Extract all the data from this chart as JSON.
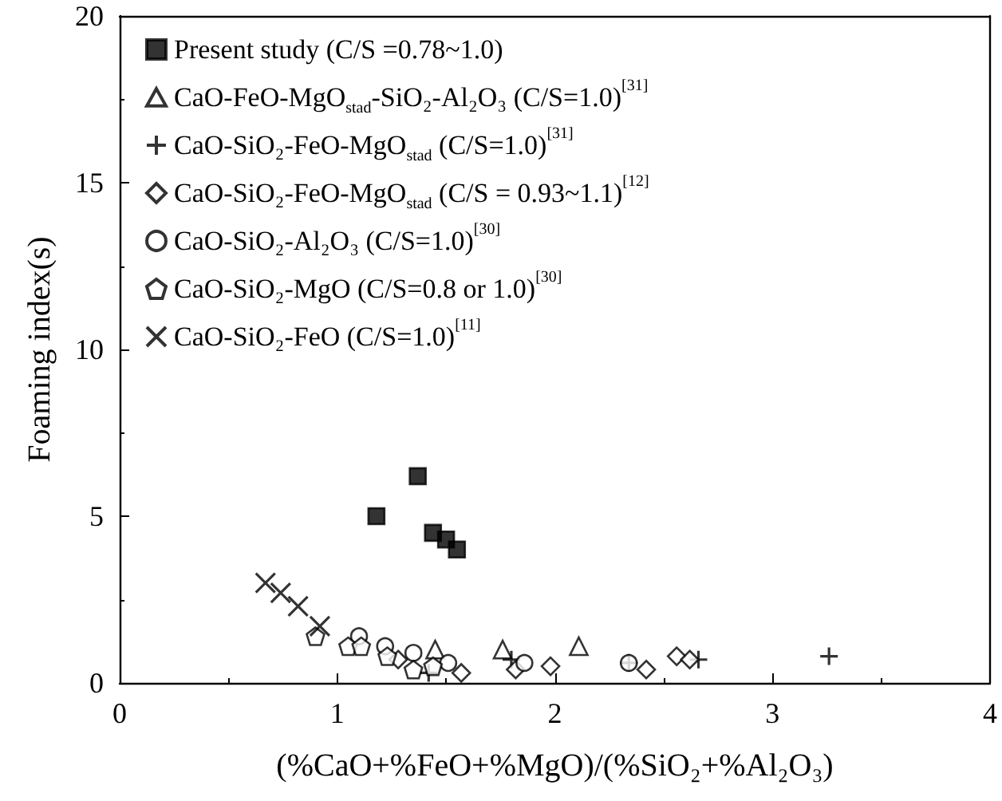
{
  "chart_data": {
    "type": "scatter",
    "xlabel": "(%CaO+%FeO+%MgO)/(%SiO₂+%Al₂O₃)",
    "ylabel": "Foaming index(s)",
    "xlim": [
      0,
      4
    ],
    "xticks": [
      0,
      1,
      2,
      3,
      4
    ],
    "ylim": [
      0,
      20
    ],
    "yticks": [
      0,
      5,
      10,
      15,
      20
    ],
    "grid": false,
    "legend": "top left",
    "series": [
      {
        "name": "Present study (C/S =0.78~1.0)",
        "color": "#000000",
        "marker": "square",
        "x": [
          1.18,
          1.37,
          1.44,
          1.5,
          1.55
        ],
        "values": [
          5.0,
          6.2,
          4.5,
          4.3,
          4.0
        ]
      },
      {
        "name": "CaO-FeO-MgO$_{stad}$-SiO₂-Al₂O₃ (C/S=1.0)$^{[31]}$",
        "color": "#000000",
        "marker": "triangle",
        "x": [
          1.45,
          1.76,
          2.11
        ],
        "values": [
          1.0,
          1.0,
          1.1
        ]
      },
      {
        "name": "CaO-SiO₂-FeO-MgO$_{stad}$ (C/S=1.0)$^{[31]}$",
        "color": "#000000",
        "marker": "plus",
        "x": [
          1.42,
          1.8,
          2.34,
          2.66,
          3.26
        ],
        "values": [
          0.3,
          0.7,
          0.6,
          0.7,
          0.8
        ]
      },
      {
        "name": "CaO-SiO₂-FeO-MgO$_{stad}$ (C/S = 0.93~1.1)$^{[12]}$",
        "color": "#000000",
        "marker": "diamond",
        "x": [
          1.28,
          1.57,
          1.82,
          1.98,
          2.42,
          2.56,
          2.62
        ],
        "values": [
          0.7,
          0.3,
          0.4,
          0.5,
          0.4,
          0.8,
          0.7
        ]
      },
      {
        "name": "CaO-SiO₂-Al₂O₃ (C/S=1.0)$^{[30]}$",
        "color": "#000000",
        "marker": "circle",
        "x": [
          1.1,
          1.22,
          1.35,
          1.51,
          1.86,
          2.34
        ],
        "values": [
          1.4,
          1.1,
          0.9,
          0.6,
          0.6,
          0.6
        ]
      },
      {
        "name": "CaO-SiO₂-MgO (C/S=0.8 or 1.0)$^{[30]}$",
        "color": "#000000",
        "x": [
          0.9,
          1.05,
          1.11,
          1.23,
          1.35,
          1.44
        ],
        "values": [
          1.4,
          1.1,
          1.1,
          0.8,
          0.4,
          0.5
        ]
      },
      {
        "name": "CaO-SiO₂-FeO (C/S=1.0)$^{[11]}$",
        "color": "#000000",
        "marker": "x",
        "x": [
          0.67,
          0.74,
          0.82,
          0.92
        ],
        "values": [
          3.0,
          2.7,
          2.3,
          1.7
        ]
      }
    ]
  }
}
